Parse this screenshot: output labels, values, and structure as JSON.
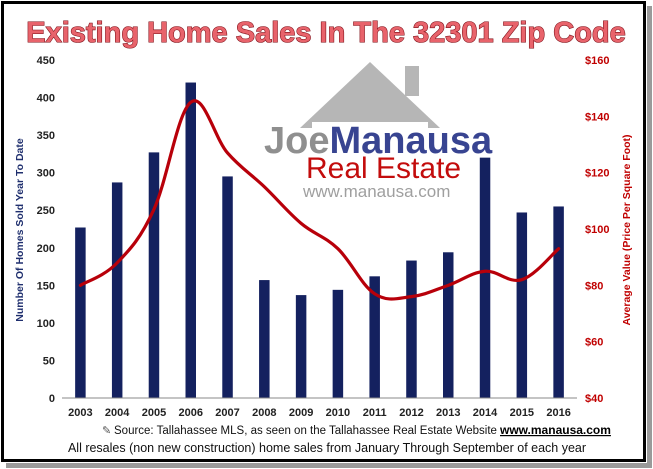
{
  "chart_data": {
    "type": "bar",
    "title": "Existing Home Sales In The 32301 Zip Code",
    "categories": [
      "2003",
      "2004",
      "2005",
      "2006",
      "2007",
      "2008",
      "2009",
      "2010",
      "2011",
      "2012",
      "2013",
      "2014",
      "2015",
      "2016"
    ],
    "series": [
      {
        "values": [
          227,
          287,
          327,
          420,
          295,
          157,
          137,
          144,
          162,
          183,
          194,
          320,
          247,
          255
        ],
        "type": "bar",
        "axis": "left",
        "color": "#14215f"
      },
      {
        "values": [
          80,
          88,
          107,
          145,
          127,
          115,
          102,
          93,
          77,
          76,
          80,
          85,
          82,
          93
        ],
        "type": "line",
        "axis": "right",
        "color": "#b8000a"
      }
    ],
    "ylabel": "Number Of Homes Sold Year To Date",
    "ylabel_right": "Average Value (Price Per Square Foot)",
    "ylim": [
      0,
      450
    ],
    "ylim_right": [
      40,
      160
    ],
    "yticks": [
      "0",
      "50",
      "100",
      "150",
      "200",
      "250",
      "300",
      "350",
      "400",
      "450"
    ],
    "yticks_right": [
      "$40",
      "$60",
      "$80",
      "$100",
      "$120",
      "$140",
      "$160"
    ],
    "grid": false,
    "legend": "none"
  },
  "watermark": {
    "joe": "Joe",
    "manausa": "Manausa",
    "real_estate": "Real Estate",
    "website": "www.manausa.com"
  },
  "source": {
    "text": "Source: Tallahassee MLS, as seen on the Tallahassee Real Estate Website",
    "url": "www.manausa.com"
  },
  "footnote": "All resales (non new construction) home sales from January Through September of each year",
  "colors": {
    "bar": "#14215f",
    "line": "#b8000a",
    "title_fill": "#e8636b",
    "title_stroke": "#7a0c14"
  }
}
